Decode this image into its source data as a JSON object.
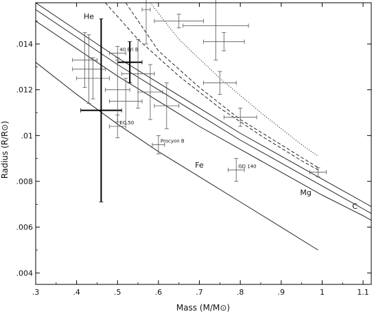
{
  "chart_data": {
    "type": "scatter",
    "xlabel": "Mass (M/M⊙)",
    "ylabel": "Radius (R/R⊙)",
    "xlim": [
      0.3,
      1.12
    ],
    "ylim": [
      0.0035,
      0.0158
    ],
    "x_ticks": [
      {
        "value": 0.3,
        "label": ".3"
      },
      {
        "value": 0.4,
        "label": ".4"
      },
      {
        "value": 0.5,
        "label": ".5"
      },
      {
        "value": 0.6,
        "label": ".6"
      },
      {
        "value": 0.7,
        "label": ".7"
      },
      {
        "value": 0.8,
        "label": ".8"
      },
      {
        "value": 0.9,
        "label": ".9"
      },
      {
        "value": 1.0,
        "label": "1"
      },
      {
        "value": 1.1,
        "label": "1.1"
      }
    ],
    "y_ticks": [
      {
        "value": 0.004,
        "label": ".004"
      },
      {
        "value": 0.006,
        "label": ".006"
      },
      {
        "value": 0.008,
        "label": ".008"
      },
      {
        "value": 0.01,
        "label": ".01"
      },
      {
        "value": 0.012,
        "label": ".012"
      },
      {
        "value": 0.014,
        "label": ".014"
      }
    ],
    "grid": false,
    "curves": [
      {
        "name": "He",
        "style": "solid",
        "x": [
          0.3,
          0.4,
          0.5,
          0.6,
          0.7,
          0.8,
          0.9,
          1.0,
          1.1,
          1.12
        ],
        "y": [
          0.0158,
          0.0146,
          0.0134,
          0.0123,
          0.0112,
          0.0101,
          0.0091,
          0.0081,
          0.0071,
          0.0069
        ]
      },
      {
        "name": "C",
        "style": "solid",
        "x": [
          0.3,
          0.4,
          0.5,
          0.6,
          0.7,
          0.8,
          0.9,
          1.0,
          1.1,
          1.12
        ],
        "y": [
          0.0155,
          0.0143,
          0.0131,
          0.012,
          0.0109,
          0.0098,
          0.0088,
          0.0078,
          0.0068,
          0.0066
        ]
      },
      {
        "name": "Mg",
        "style": "solid",
        "x": [
          0.3,
          0.4,
          0.5,
          0.6,
          0.7,
          0.8,
          0.9,
          1.0,
          1.1,
          1.12
        ],
        "y": [
          0.015,
          0.0138,
          0.0126,
          0.0115,
          0.0104,
          0.0094,
          0.0084,
          0.0074,
          0.0065,
          0.0063
        ]
      },
      {
        "name": "Fe",
        "style": "solid",
        "x": [
          0.3,
          0.4,
          0.5,
          0.6,
          0.7,
          0.8,
          0.9,
          0.99
        ],
        "y": [
          0.0132,
          0.0118,
          0.0105,
          0.0093,
          0.0082,
          0.0071,
          0.006,
          0.005
        ]
      },
      {
        "style": "dashed",
        "x": [
          0.52,
          0.6,
          0.7,
          0.8,
          0.9,
          0.99
        ],
        "y": [
          0.0158,
          0.0137,
          0.0121,
          0.0107,
          0.0096,
          0.0086
        ]
      },
      {
        "style": "dashed",
        "x": [
          0.47,
          0.55,
          0.65,
          0.75,
          0.85,
          0.95,
          0.99
        ],
        "y": [
          0.0158,
          0.0142,
          0.0126,
          0.0112,
          0.01,
          0.0089,
          0.0085
        ]
      },
      {
        "style": "dotted",
        "x": [
          0.58,
          0.65,
          0.75,
          0.85,
          0.95,
          0.99
        ],
        "y": [
          0.0158,
          0.0142,
          0.0125,
          0.011,
          0.0096,
          0.0091
        ]
      }
    ],
    "curve_labels": [
      {
        "text": "He",
        "x": 0.43,
        "y": 0.0151
      },
      {
        "text": "Fe",
        "x": 0.7,
        "y": 0.0086
      },
      {
        "text": "Mg",
        "x": 0.96,
        "y": 0.0074
      },
      {
        "text": "C",
        "x": 1.08,
        "y": 0.0068
      }
    ],
    "points": [
      {
        "label": "40 Eri B",
        "x": 0.5,
        "y": 0.0136,
        "xerr": 0.02,
        "yerr": 0.0003,
        "bold": false
      },
      {
        "label": "EG 50",
        "x": 0.5,
        "y": 0.0104,
        "xerr": 0.02,
        "yerr": 0.0005,
        "bold": false
      },
      {
        "label": "Procyon B",
        "x": 0.6,
        "y": 0.0096,
        "xerr": 0.015,
        "yerr": 0.0004,
        "bold": false
      },
      {
        "label": "GD 140",
        "x": 0.79,
        "y": 0.0085,
        "xerr": 0.02,
        "yerr": 0.0005,
        "bold": false
      },
      {
        "x": 0.99,
        "y": 0.0084,
        "xerr": 0.02,
        "yerr": 0.0002,
        "bold": false
      },
      {
        "x": 0.42,
        "y": 0.0133,
        "xerr": 0.03,
        "yerr": 0.0012,
        "bold": false
      },
      {
        "x": 0.43,
        "y": 0.0129,
        "xerr": 0.04,
        "yerr": 0.0015,
        "bold": false
      },
      {
        "x": 0.44,
        "y": 0.0125,
        "xerr": 0.04,
        "yerr": 0.0009,
        "bold": false
      },
      {
        "x": 0.46,
        "y": 0.0111,
        "xerr": 0.05,
        "yerr": 0.004,
        "bold": true
      },
      {
        "x": 0.53,
        "y": 0.0132,
        "xerr": 0.03,
        "yerr": 0.0009,
        "bold": true
      },
      {
        "x": 0.55,
        "y": 0.0127,
        "xerr": 0.04,
        "yerr": 0.0015,
        "bold": false
      },
      {
        "x": 0.52,
        "y": 0.0115,
        "xerr": 0.04,
        "yerr": 0.001,
        "bold": false
      },
      {
        "x": 0.5,
        "y": 0.012,
        "xerr": 0.03,
        "yerr": 0.0014,
        "bold": false
      },
      {
        "x": 0.58,
        "y": 0.0119,
        "xerr": 0.03,
        "yerr": 0.0012,
        "bold": false
      },
      {
        "x": 0.62,
        "y": 0.0113,
        "xerr": 0.03,
        "yerr": 0.001,
        "bold": false
      },
      {
        "x": 0.65,
        "y": 0.015,
        "xerr": 0.06,
        "yerr": 0.0003,
        "bold": false
      },
      {
        "x": 0.74,
        "y": 0.0148,
        "xerr": 0.08,
        "yerr": 0.0015,
        "bold": false
      },
      {
        "x": 0.75,
        "y": 0.0123,
        "xerr": 0.04,
        "yerr": 0.0005,
        "bold": false
      },
      {
        "x": 0.76,
        "y": 0.0141,
        "xerr": 0.05,
        "yerr": 0.0004,
        "bold": false
      },
      {
        "x": 0.8,
        "y": 0.0108,
        "xerr": 0.04,
        "yerr": 0.0004,
        "bold": false
      },
      {
        "x": 0.57,
        "y": 0.0155,
        "xerr": 0.01,
        "yerr": 0.0015,
        "bold": false
      }
    ]
  }
}
